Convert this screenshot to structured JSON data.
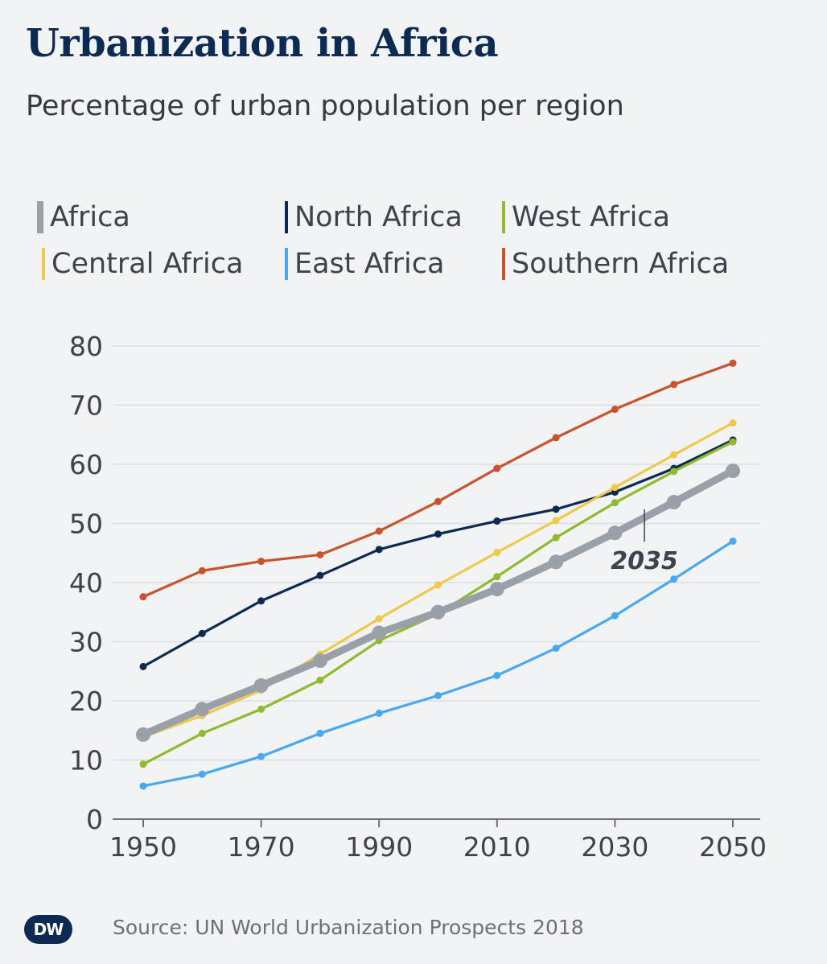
{
  "header": {
    "title": "Urbanization in Africa",
    "subtitle": "Percentage of urban population per region"
  },
  "footer": {
    "source": "Source: UN World Urbanization Prospects 2018",
    "logo_text": "DW"
  },
  "chart_data": {
    "type": "line",
    "title": "Urbanization in Africa",
    "subtitle": "Percentage of urban population per region",
    "x": [
      1950,
      1960,
      1970,
      1980,
      1990,
      2000,
      2010,
      2020,
      2030,
      2040,
      2050
    ],
    "x_tick_labels": [
      "1950",
      "1970",
      "1990",
      "2010",
      "2030",
      "2050"
    ],
    "y_tick_labels": [
      "0",
      "10",
      "20",
      "30",
      "40",
      "50",
      "60",
      "70",
      "80"
    ],
    "ylim": [
      0,
      80
    ],
    "xlabel": "",
    "ylabel": "",
    "grid": true,
    "legend_position": "top",
    "annotation": {
      "text": "2035",
      "x": 2035,
      "y": 51
    },
    "series": [
      {
        "name": "Africa",
        "color": "#9aa0a8",
        "emphasis": true,
        "values": [
          14.3,
          18.6,
          22.6,
          26.8,
          31.5,
          35.0,
          38.9,
          43.5,
          48.4,
          53.6,
          58.9
        ]
      },
      {
        "name": "North Africa",
        "color": "#0c2a52",
        "values": [
          25.8,
          31.4,
          36.9,
          41.2,
          45.6,
          48.2,
          50.4,
          52.4,
          55.3,
          59.3,
          64.1
        ]
      },
      {
        "name": "West Africa",
        "color": "#8fbb2d",
        "values": [
          9.3,
          14.5,
          18.6,
          23.5,
          30.2,
          34.7,
          41.0,
          47.6,
          53.5,
          58.8,
          63.8
        ]
      },
      {
        "name": "Central Africa",
        "color": "#efc94a",
        "values": [
          13.9,
          17.5,
          21.8,
          27.9,
          33.9,
          39.6,
          45.1,
          50.5,
          56.1,
          61.6,
          67.0
        ]
      },
      {
        "name": "East Africa",
        "color": "#4aa8f0",
        "values": [
          5.6,
          7.6,
          10.6,
          14.5,
          17.9,
          20.9,
          24.3,
          28.9,
          34.4,
          40.6,
          47.0
        ]
      },
      {
        "name": "Southern Africa",
        "color": "#c9532c",
        "values": [
          37.6,
          42.0,
          43.6,
          44.7,
          48.7,
          53.7,
          59.3,
          64.5,
          69.3,
          73.5,
          77.1
        ]
      }
    ]
  }
}
